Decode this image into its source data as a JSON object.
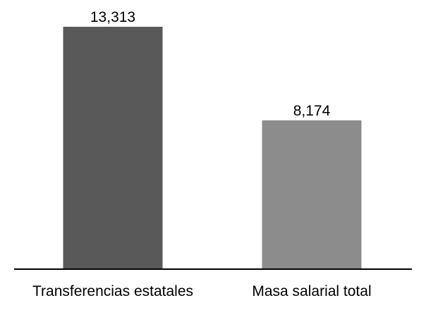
{
  "chart_data": {
    "type": "bar",
    "categories": [
      "Transferencias estatales",
      "Masa salarial total"
    ],
    "values": [
      13.313,
      8.174
    ],
    "value_labels": [
      "13,313",
      "8,174"
    ],
    "colors": [
      "#595959",
      "#8c8c8c"
    ],
    "axis_color": "#000000",
    "ylim": [
      0,
      13.313
    ],
    "grid": false,
    "legend": "none",
    "title": "",
    "xlabel": "",
    "ylabel": ""
  }
}
